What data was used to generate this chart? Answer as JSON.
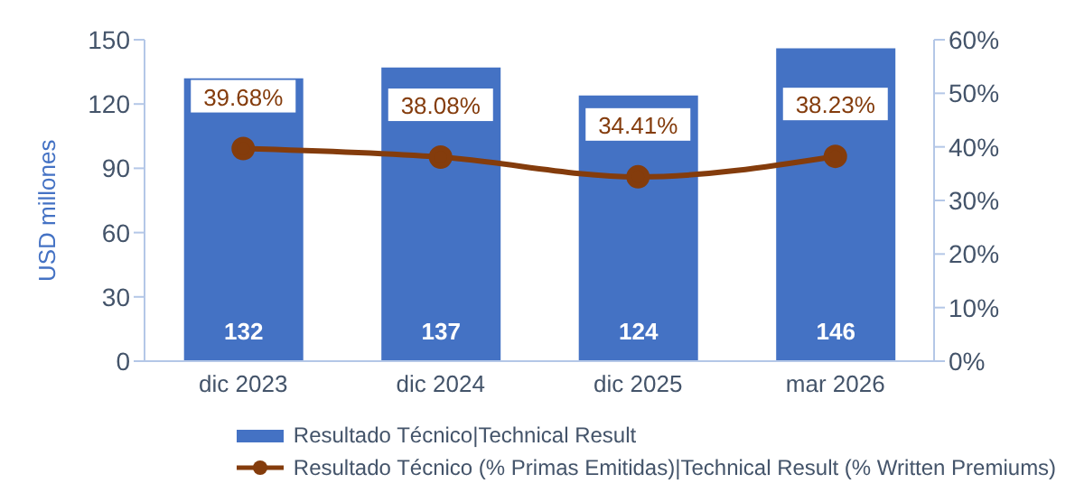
{
  "chart_data": {
    "type": "bar",
    "categories": [
      "dic 2023",
      "dic 2024",
      "dic 2025",
      "mar 2026"
    ],
    "ylabel": "USD millones",
    "ylim": [
      0,
      150
    ],
    "yticks": [
      0,
      30,
      60,
      90,
      120,
      150
    ],
    "y2lim": [
      0,
      60
    ],
    "y2ticks": [
      {
        "value": 0,
        "label": "0%"
      },
      {
        "value": 10,
        "label": "10%"
      },
      {
        "value": 20,
        "label": "20%"
      },
      {
        "value": 30,
        "label": "30%"
      },
      {
        "value": 40,
        "label": "40%"
      },
      {
        "value": 50,
        "label": "50%"
      },
      {
        "value": 60,
        "label": "60%"
      }
    ],
    "series": [
      {
        "name": "Resultado Técnico|Technical Result",
        "color": "#4472c4",
        "values": [
          132,
          137,
          124,
          146
        ],
        "value_labels": [
          "132",
          "137",
          "124",
          "146"
        ]
      },
      {
        "name": "Resultado Técnico (% Primas Emitidas)|Technical Result (% Written Premiums)",
        "type": "line",
        "axis": "y2",
        "color": "#843c0c",
        "marker": "circle",
        "line_style": "solid",
        "values": [
          39.68,
          38.08,
          34.41,
          38.23
        ],
        "value_labels": [
          "39.68%",
          "38.08%",
          "34.41%",
          "38.23%"
        ]
      }
    ],
    "legend": "bottom"
  }
}
